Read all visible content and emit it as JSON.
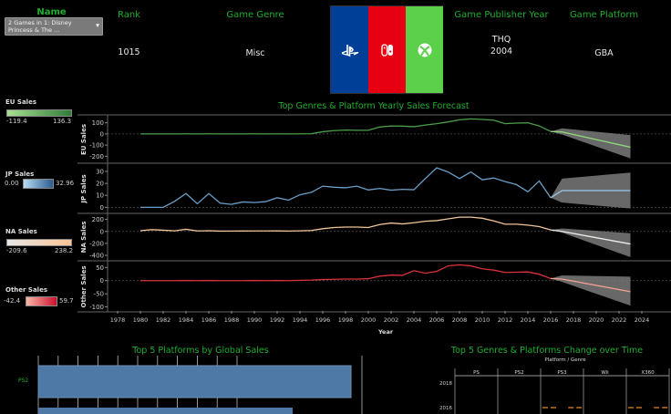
{
  "header": {
    "name_label": "Name",
    "name_select": "2 Games in 1: Disney Princess & The ...",
    "rank_label": "Rank",
    "rank_value": "1015",
    "genre_label": "Game Genre",
    "genre_value": "Misc",
    "publisher_year_label": "Game Publisher Year",
    "publisher_value": "THQ",
    "year_value": "2004",
    "platform_label": "Game Platform",
    "platform_value": "GBA",
    "logos": [
      {
        "icon": "playstation-icon",
        "color": "#003f98"
      },
      {
        "icon": "nintendo-switch-icon",
        "color": "#e60012"
      },
      {
        "icon": "xbox-icon",
        "color": "#5cd04a"
      }
    ]
  },
  "legends": [
    {
      "title": "EU Sales",
      "min": "-119.4",
      "max": "136.3",
      "from": "#a8e08f",
      "to": "#2e7d3a"
    },
    {
      "title": "JP Sales",
      "min": "0.00",
      "max": "32.96",
      "from": "#b8dcf2",
      "to": "#2b5c8e"
    },
    {
      "title": "NA Sales",
      "min": "-209.6",
      "max": "238.2",
      "from": "#e6e6e6",
      "to": "#fcc493"
    },
    {
      "title": "Other Sales",
      "min": "-42.4",
      "max": "59.7",
      "from": "#fbb6a9",
      "to": "#c8102e"
    }
  ],
  "chart_data": [
    {
      "type": "line",
      "title": "Top Genres & Platform Yearly Sales Forecast",
      "xlabel": "Year",
      "x_ticks": [
        "1978",
        "1980",
        "1982",
        "1984",
        "1986",
        "1988",
        "1990",
        "1992",
        "1994",
        "1996",
        "1998",
        "2000",
        "2002",
        "2004",
        "2006",
        "2008",
        "2010",
        "2012",
        "2014",
        "2016",
        "2018",
        "2020",
        "2022",
        "2024"
      ],
      "grid": false,
      "panels": [
        {
          "ylabel": "EU Sales",
          "color": "#4a9e4a",
          "forecast_color": "#8fd676",
          "ylim": [
            -230,
            130
          ],
          "y_ticks": [
            100,
            0,
            -100,
            -200
          ],
          "x": [
            1980,
            1981,
            1982,
            1983,
            1984,
            1985,
            1986,
            1987,
            1988,
            1989,
            1990,
            1991,
            1992,
            1993,
            1994,
            1995,
            1996,
            1997,
            1998,
            1999,
            2000,
            2001,
            2002,
            2003,
            2004,
            2005,
            2006,
            2007,
            2008,
            2009,
            2010,
            2011,
            2012,
            2013,
            2014,
            2015,
            2016
          ],
          "values": [
            0,
            0,
            0,
            0,
            1,
            0,
            1,
            0,
            0,
            0,
            1,
            0,
            1,
            0,
            1,
            2,
            20,
            30,
            35,
            33,
            33,
            62,
            72,
            70,
            65,
            80,
            92,
            108,
            127,
            135,
            130,
            124,
            92,
            97,
            100,
            72,
            22
          ],
          "forecast": {
            "x": [
              2016,
              2017,
              2023
            ],
            "values": [
              22,
              18,
              -119
            ],
            "lower": [
              22,
              -5,
              -220
            ],
            "upper": [
              22,
              50,
              -10
            ]
          }
        },
        {
          "ylabel": "JP Sales",
          "color": "#6a9ec8",
          "forecast_color": "#9cc8ea",
          "ylim": [
            -2,
            33
          ],
          "y_ticks": [
            30,
            20,
            10,
            0
          ],
          "x": [
            1980,
            1981,
            1982,
            1983,
            1984,
            1985,
            1986,
            1987,
            1988,
            1989,
            1990,
            1991,
            1992,
            1993,
            1994,
            1995,
            1996,
            1997,
            1998,
            1999,
            2000,
            2001,
            2002,
            2003,
            2004,
            2005,
            2006,
            2007,
            2008,
            2009,
            2010,
            2011,
            2012,
            2013,
            2014,
            2015,
            2016
          ],
          "values": [
            0,
            0,
            0,
            5,
            11.5,
            3,
            11.5,
            3.5,
            2.5,
            4.5,
            4,
            4.8,
            8,
            6,
            10.5,
            12.5,
            17.7,
            16.8,
            16.3,
            17.7,
            14.5,
            15.8,
            14.3,
            15,
            14.7,
            24,
            33,
            29.5,
            24,
            29.5,
            23,
            24.5,
            21.5,
            19,
            13,
            22,
            8
          ],
          "forecast": {
            "x": [
              2016,
              2017,
              2023
            ],
            "values": [
              8,
              14,
              14
            ],
            "lower": [
              8,
              4,
              -1
            ],
            "upper": [
              8,
              24,
              29
            ]
          }
        },
        {
          "ylabel": "NA Sales",
          "color": "#f2c49a",
          "forecast_color": "#f0ece8",
          "ylim": [
            -430,
            240
          ],
          "y_ticks": [
            200,
            0,
            -200,
            -400
          ],
          "x": [
            1980,
            1981,
            1982,
            1983,
            1984,
            1985,
            1986,
            1987,
            1988,
            1989,
            1990,
            1991,
            1992,
            1993,
            1994,
            1995,
            1996,
            1997,
            1998,
            1999,
            2000,
            2001,
            2002,
            2003,
            2004,
            2005,
            2006,
            2007,
            2008,
            2009,
            2010,
            2011,
            2012,
            2013,
            2014,
            2015,
            2016
          ],
          "values": [
            12,
            30,
            20,
            10,
            35,
            8,
            12,
            5,
            6,
            7,
            8,
            8,
            9,
            6,
            10,
            15,
            45,
            65,
            72,
            72,
            65,
            115,
            140,
            125,
            145,
            170,
            180,
            210,
            238,
            238,
            220,
            175,
            120,
            120,
            105,
            80,
            25
          ],
          "forecast": {
            "x": [
              2016,
              2017,
              2023
            ],
            "values": [
              25,
              0,
              -210
            ],
            "lower": [
              25,
              -20,
              -430
            ],
            "upper": [
              25,
              50,
              -30
            ]
          }
        },
        {
          "ylabel": "Other Sales",
          "color": "#d9303a",
          "forecast_color": "#f4a090",
          "ylim": [
            -105,
            58
          ],
          "y_ticks": [
            50,
            0,
            -50,
            -100
          ],
          "x": [
            1980,
            1981,
            1982,
            1983,
            1984,
            1985,
            1986,
            1987,
            1988,
            1989,
            1990,
            1991,
            1992,
            1993,
            1994,
            1995,
            1996,
            1997,
            1998,
            1999,
            2000,
            2001,
            2002,
            2003,
            2004,
            2005,
            2006,
            2007,
            2008,
            2009,
            2010,
            2011,
            2012,
            2013,
            2014,
            2015,
            2016
          ],
          "values": [
            0,
            0,
            0,
            0,
            0.5,
            0,
            0.5,
            0,
            0,
            0,
            0.5,
            0,
            0.5,
            0,
            1,
            2,
            4,
            5,
            6,
            6,
            7,
            17,
            21,
            20,
            38,
            28,
            35,
            56,
            60,
            56,
            45,
            40,
            31,
            32,
            33,
            24,
            8
          ],
          "forecast": {
            "x": [
              2016,
              2017,
              2023
            ],
            "values": [
              8,
              6,
              -42
            ],
            "lower": [
              8,
              -5,
              -95
            ],
            "upper": [
              8,
              20,
              15
            ]
          }
        }
      ]
    },
    {
      "type": "bar",
      "title": "Top 5 Platforms by Global Sales",
      "categories": [
        "PS2",
        ""
      ],
      "color": "#4e79a7"
    },
    {
      "type": "table",
      "title": "Top 5 Genres & Platforms Change over Time",
      "column_header": "Platform  /  Genre",
      "columns": [
        "PS",
        "PS2",
        "PS3",
        "Wii",
        "X360"
      ],
      "rows": [
        "2018",
        "2016"
      ],
      "mark_color": "#f28e2b"
    }
  ]
}
